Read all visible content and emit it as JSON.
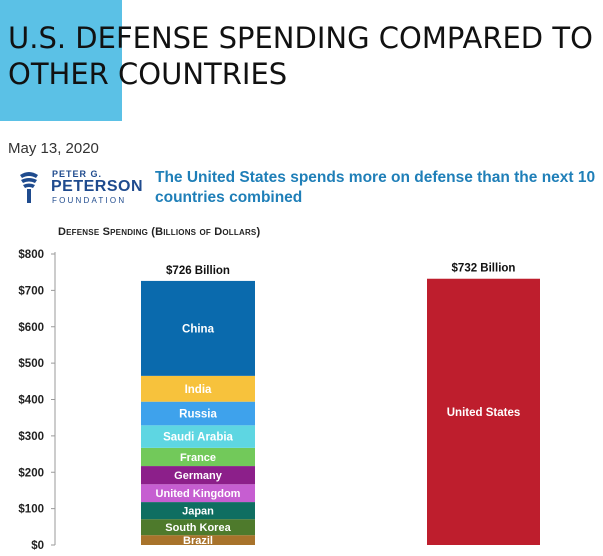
{
  "page": {
    "headline": "U.S. DEFENSE SPENDING COMPARED TO OTHER COUNTRIES",
    "date": "May 13, 2020",
    "logo": {
      "line1": "PETER G.",
      "line2": "PETERSON",
      "line3": "FOUNDATION"
    },
    "subtitle": "The United States spends more on defense than the next 10 countries combined",
    "accent_color": "#5bc1e6"
  },
  "chart_data": {
    "type": "bar",
    "stacked": true,
    "ylabel": "Defense Spending (Billions of Dollars)",
    "ylim": [
      0,
      800
    ],
    "yticks": [
      0,
      100,
      200,
      300,
      400,
      500,
      600,
      700,
      800
    ],
    "ytick_labels": [
      "$0",
      "$100",
      "$200",
      "$300",
      "$400",
      "$500",
      "$600",
      "$700",
      "$800"
    ],
    "grid": false,
    "bars": [
      {
        "total_label": "$726 Billion",
        "segments": [
          {
            "name": "Brazil",
            "value": 27,
            "color": "#a8732b"
          },
          {
            "name": "South Korea",
            "value": 44,
            "color": "#4e7a2c"
          },
          {
            "name": "Japan",
            "value": 47,
            "color": "#0f6e61"
          },
          {
            "name": "United Kingdom",
            "value": 49,
            "color": "#c65ed1"
          },
          {
            "name": "Germany",
            "value": 50,
            "color": "#8c1f8a"
          },
          {
            "name": "France",
            "value": 50,
            "color": "#72c95a"
          },
          {
            "name": "Saudi Arabia",
            "value": 62,
            "color": "#5ed6e2"
          },
          {
            "name": "Russia",
            "value": 65,
            "color": "#3ea2ec"
          },
          {
            "name": "India",
            "value": 71,
            "color": "#f7c23c"
          },
          {
            "name": "China",
            "value": 261,
            "color": "#0a6aad"
          }
        ]
      },
      {
        "total_label": "$732 Billion",
        "segments": [
          {
            "name": "United States",
            "value": 732,
            "color": "#be1e2d"
          }
        ]
      }
    ]
  }
}
